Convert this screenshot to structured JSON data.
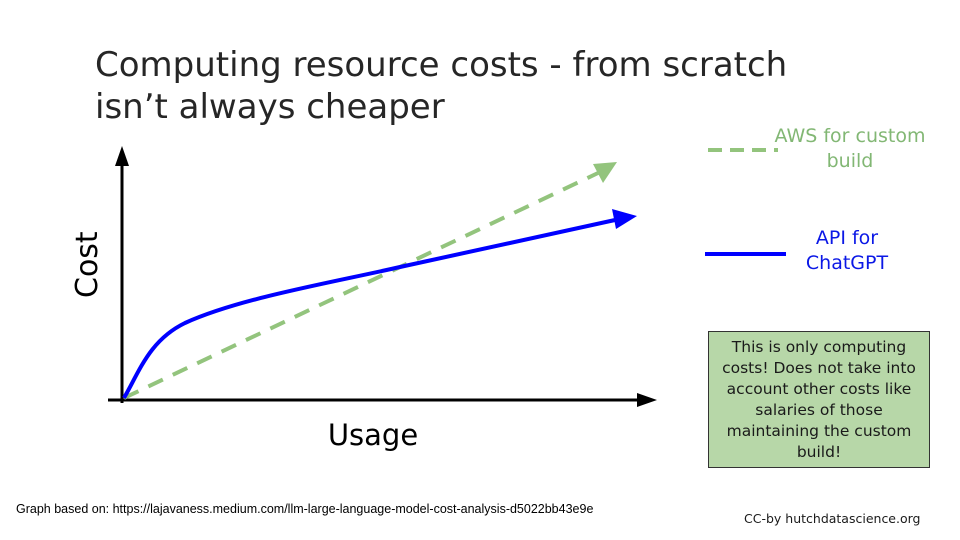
{
  "slide": {
    "title_lines": [
      "Computing resource costs - from scratch",
      "isn’t always cheaper"
    ]
  },
  "diagram": {
    "y_axis_label": "Cost",
    "x_axis_label": "Usage",
    "series": [
      {
        "name": "AWS for custom build",
        "legend_lines": [
          "AWS for custom",
          "build"
        ],
        "color": "#93c47d",
        "style": "dashed"
      },
      {
        "name": "API for ChatGPT",
        "legend_lines": [
          "API for",
          "ChatGPT"
        ],
        "color": "#0000ff",
        "style": "solid"
      }
    ]
  },
  "note": {
    "text": "This is only computing costs! Does not take into account other costs like salaries of those maintaining the custom build!",
    "background": "#b7d7a8"
  },
  "footer": {
    "source": "Graph based on: https://lajavaness.medium.com/llm-large-language-model-cost-analysis-d5022bb43e9e",
    "credit": "CC-by hutchdatascience.org"
  }
}
